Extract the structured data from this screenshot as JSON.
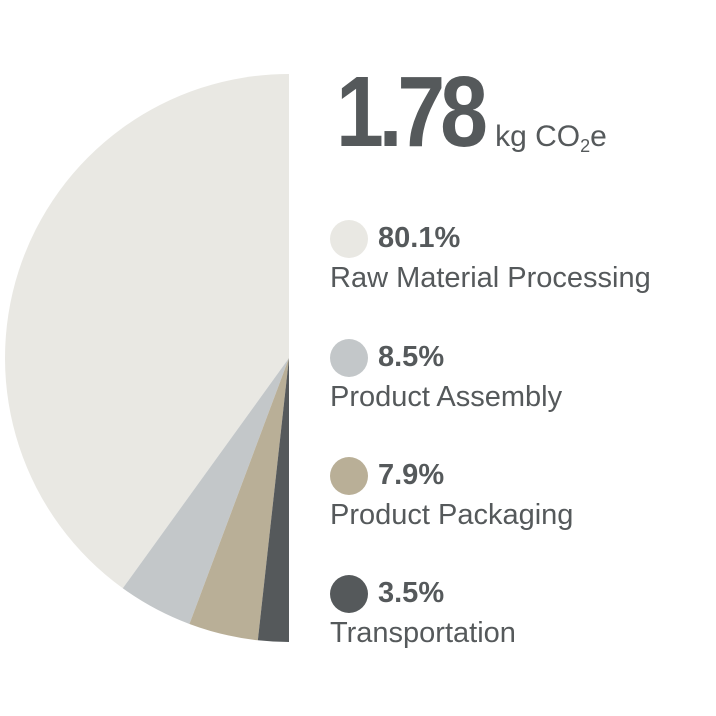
{
  "chart_data": {
    "type": "pie",
    "title": "",
    "total": {
      "value": "1.78",
      "unit_prefix": "kg CO",
      "unit_sub": "2",
      "unit_suffix": "e"
    },
    "slices": [
      {
        "label": "Raw Material Processing",
        "value": 80.1,
        "value_label": "80.1%",
        "color": "#e9e8e3"
      },
      {
        "label": "Product Assembly",
        "value": 8.5,
        "value_label": "8.5%",
        "color": "#c3c7c9"
      },
      {
        "label": "Product Packaging",
        "value": 7.9,
        "value_label": "7.9%",
        "color": "#b9af97"
      },
      {
        "label": "Transportation",
        "value": 3.5,
        "value_label": "3.5%",
        "color": "#55595b"
      }
    ],
    "legend_position": "right",
    "shape": "half-pie"
  }
}
